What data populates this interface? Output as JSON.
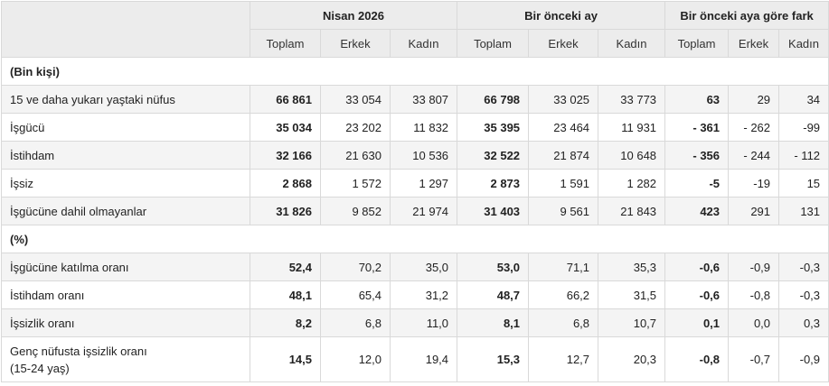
{
  "header": {
    "groups": [
      "Nisan 2026",
      "Bir önceki ay",
      "Bir önceki aya göre fark"
    ],
    "subcols": [
      "Toplam",
      "Erkek",
      "Kadın"
    ]
  },
  "sections": [
    {
      "title": "(Bin kişi)",
      "rows": [
        {
          "label": "15 ve daha yukarı yaştaki nüfus",
          "values": [
            "66 861",
            "33 054",
            "33 807",
            "66 798",
            "33 025",
            "33 773",
            "63",
            "29",
            "34"
          ]
        },
        {
          "label": "İşgücü",
          "values": [
            "35 034",
            "23 202",
            "11 832",
            "35 395",
            "23 464",
            "11 931",
            "- 361",
            "- 262",
            "-99"
          ]
        },
        {
          "label": "İstihdam",
          "values": [
            "32 166",
            "21 630",
            "10 536",
            "32 522",
            "21 874",
            "10 648",
            "- 356",
            "- 244",
            "- 112"
          ]
        },
        {
          "label": "İşsiz",
          "values": [
            "2 868",
            "1 572",
            "1 297",
            "2 873",
            "1 591",
            "1 282",
            "-5",
            "-19",
            "15"
          ]
        },
        {
          "label": "İşgücüne dahil olmayanlar",
          "values": [
            "31 826",
            "9 852",
            "21 974",
            "31 403",
            "9 561",
            "21 843",
            "423",
            "291",
            "131"
          ]
        }
      ]
    },
    {
      "title": "(%)",
      "rows": [
        {
          "label": "İşgücüne katılma oranı",
          "values": [
            "52,4",
            "70,2",
            "35,0",
            "53,0",
            "71,1",
            "35,3",
            "-0,6",
            "-0,9",
            "-0,3"
          ]
        },
        {
          "label": "İstihdam oranı",
          "values": [
            "48,1",
            "65,4",
            "31,2",
            "48,7",
            "66,2",
            "31,5",
            "-0,6",
            "-0,8",
            "-0,3"
          ]
        },
        {
          "label": "İşsizlik oranı",
          "values": [
            "8,2",
            "6,8",
            "11,0",
            "8,1",
            "6,8",
            "10,7",
            "0,1",
            "0,0",
            "0,3"
          ]
        },
        {
          "label_line1": "Genç nüfusta işsizlik oranı",
          "label_line2": "(15-24 yaş)",
          "values": [
            "14,5",
            "12,0",
            "19,4",
            "15,3",
            "12,7",
            "20,3",
            "-0,8",
            "-0,7",
            "-0,9"
          ]
        }
      ]
    }
  ]
}
